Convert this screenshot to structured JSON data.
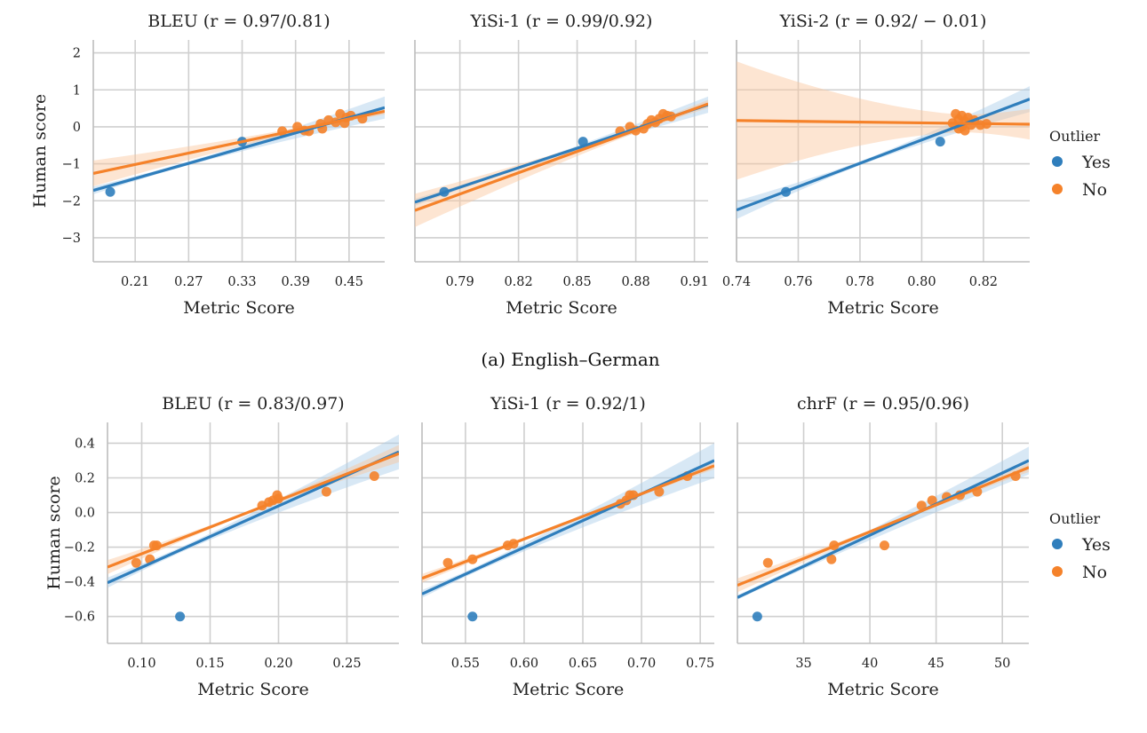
{
  "colors": {
    "yes": "#2f7ebc",
    "no": "#f5822a",
    "yes_fill": "#a9cbe8",
    "no_fill": "#fbc69c"
  },
  "legend": {
    "title": "Outlier",
    "entries": [
      "Yes",
      "No"
    ]
  },
  "captions": {
    "row_a": "(a) English–German"
  },
  "chart_data": [
    {
      "type": "scatter",
      "title": "BLEU (r = 0.97/0.81)",
      "xlabel": "Metric Score",
      "ylabel": "Human score",
      "xlim": [
        0.163,
        0.49
      ],
      "ylim": [
        -3.65,
        2.35
      ],
      "xticks": [
        "0.21",
        "0.27",
        "0.33",
        "0.39",
        "0.45"
      ],
      "yticks": [
        "2",
        "1",
        "0",
        "−1",
        "−2",
        "−3"
      ],
      "series": [
        {
          "name": "Yes",
          "points": [
            [
              0.182,
              -1.76
            ],
            [
              0.33,
              -0.4
            ]
          ],
          "fit": [
            [
              0.163,
              -1.72
            ],
            [
              0.49,
              0.52
            ]
          ],
          "band": 0.3
        },
        {
          "name": "No",
          "points": [
            [
              0.375,
              -0.12
            ],
            [
              0.392,
              0.0
            ],
            [
              0.4,
              -0.1
            ],
            [
              0.405,
              -0.12
            ],
            [
              0.418,
              0.08
            ],
            [
              0.42,
              -0.05
            ],
            [
              0.427,
              0.18
            ],
            [
              0.435,
              0.12
            ],
            [
              0.44,
              0.35
            ],
            [
              0.445,
              0.1
            ],
            [
              0.447,
              0.25
            ],
            [
              0.452,
              0.3
            ],
            [
              0.465,
              0.22
            ]
          ],
          "fit": [
            [
              0.163,
              -1.26
            ],
            [
              0.49,
              0.42
            ]
          ],
          "band": 0.35
        }
      ]
    },
    {
      "type": "scatter",
      "title": "YiSi-1 (r = 0.99/0.92)",
      "xlabel": "Metric Score",
      "ylabel": "",
      "xlim": [
        0.767,
        0.917
      ],
      "ylim": [
        -3.65,
        2.35
      ],
      "xticks": [
        "0.79",
        "0.82",
        "0.85",
        "0.88",
        "0.91"
      ],
      "yticks": [],
      "series": [
        {
          "name": "Yes",
          "points": [
            [
              0.782,
              -1.76
            ],
            [
              0.853,
              -0.4
            ]
          ],
          "fit": [
            [
              0.767,
              -2.04
            ],
            [
              0.917,
              0.6
            ]
          ],
          "band": 0.22
        },
        {
          "name": "No",
          "points": [
            [
              0.872,
              -0.12
            ],
            [
              0.877,
              0.0
            ],
            [
              0.88,
              -0.1
            ],
            [
              0.884,
              -0.05
            ],
            [
              0.886,
              0.08
            ],
            [
              0.888,
              0.18
            ],
            [
              0.89,
              0.12
            ],
            [
              0.892,
              0.22
            ],
            [
              0.894,
              0.35
            ],
            [
              0.896,
              0.3
            ],
            [
              0.898,
              0.28
            ]
          ],
          "fit": [
            [
              0.767,
              -2.26
            ],
            [
              0.917,
              0.62
            ]
          ],
          "band": 0.45
        }
      ]
    },
    {
      "type": "scatter",
      "title": "YiSi-2 (r = 0.92/ − 0.01)",
      "xlabel": "Metric Score",
      "ylabel": "",
      "xlim": [
        0.74,
        0.835
      ],
      "ylim": [
        -3.65,
        2.35
      ],
      "xticks": [
        "0.74",
        "0.76",
        "0.78",
        "0.80",
        "0.82"
      ],
      "yticks": [],
      "series": [
        {
          "name": "Yes",
          "points": [
            [
              0.756,
              -1.76
            ],
            [
              0.806,
              -0.4
            ]
          ],
          "fit": [
            [
              0.74,
              -2.25
            ],
            [
              0.835,
              0.75
            ]
          ],
          "band": 0.35
        },
        {
          "name": "No",
          "points": [
            [
              0.81,
              0.1
            ],
            [
              0.811,
              0.35
            ],
            [
              0.812,
              -0.05
            ],
            [
              0.812,
              0.2
            ],
            [
              0.813,
              0.3
            ],
            [
              0.813,
              0.0
            ],
            [
              0.814,
              0.15
            ],
            [
              0.814,
              -0.1
            ],
            [
              0.815,
              0.25
            ],
            [
              0.816,
              0.05
            ],
            [
              0.817,
              0.18
            ],
            [
              0.819,
              0.05
            ],
            [
              0.821,
              0.08
            ]
          ],
          "fit": [
            [
              0.74,
              0.17
            ],
            [
              0.835,
              0.07
            ]
          ],
          "band": 1.6
        }
      ]
    },
    {
      "type": "scatter",
      "title": "BLEU (r = 0.83/0.97)",
      "xlabel": "Metric Score",
      "ylabel": "Human score",
      "xlim": [
        0.075,
        0.288
      ],
      "ylim": [
        -0.755,
        0.52
      ],
      "xticks": [
        "0.10",
        "0.15",
        "0.20",
        "0.25"
      ],
      "yticks": [
        "0.4",
        "0.2",
        "0.0",
        "−0.2",
        "−0.4",
        "−0.6"
      ],
      "series": [
        {
          "name": "Yes",
          "points": [
            [
              0.128,
              -0.6
            ]
          ],
          "fit": [
            [
              0.075,
              -0.405
            ],
            [
              0.288,
              0.35
            ]
          ],
          "band": 0.1
        },
        {
          "name": "No",
          "points": [
            [
              0.096,
              -0.29
            ],
            [
              0.106,
              -0.27
            ],
            [
              0.109,
              -0.19
            ],
            [
              0.111,
              -0.19
            ],
            [
              0.188,
              0.04
            ],
            [
              0.193,
              0.06
            ],
            [
              0.196,
              0.07
            ],
            [
              0.199,
              0.1
            ],
            [
              0.2,
              0.08
            ],
            [
              0.235,
              0.12
            ],
            [
              0.27,
              0.21
            ]
          ],
          "fit": [
            [
              0.075,
              -0.315
            ],
            [
              0.288,
              0.34
            ]
          ],
          "band": 0.05
        }
      ]
    },
    {
      "type": "scatter",
      "title": "YiSi-1 (r = 0.92/1)",
      "xlabel": "Metric Score",
      "ylabel": "",
      "xlim": [
        0.513,
        0.762
      ],
      "ylim": [
        -0.755,
        0.52
      ],
      "xticks": [
        "0.55",
        "0.60",
        "0.65",
        "0.70",
        "0.75"
      ],
      "yticks": [],
      "series": [
        {
          "name": "Yes",
          "points": [
            [
              0.556,
              -0.6
            ]
          ],
          "fit": [
            [
              0.513,
              -0.47
            ],
            [
              0.762,
              0.3
            ]
          ],
          "band": 0.1
        },
        {
          "name": "No",
          "points": [
            [
              0.535,
              -0.29
            ],
            [
              0.556,
              -0.27
            ],
            [
              0.586,
              -0.19
            ],
            [
              0.591,
              -0.18
            ],
            [
              0.682,
              0.05
            ],
            [
              0.687,
              0.07
            ],
            [
              0.69,
              0.1
            ],
            [
              0.693,
              0.1
            ],
            [
              0.715,
              0.12
            ],
            [
              0.739,
              0.21
            ]
          ],
          "fit": [
            [
              0.513,
              -0.38
            ],
            [
              0.762,
              0.27
            ]
          ],
          "band": 0.025
        }
      ]
    },
    {
      "type": "scatter",
      "title": "chrF (r = 0.95/0.96)",
      "xlabel": "Metric Score",
      "ylabel": "",
      "xlim": [
        30.0,
        52.0
      ],
      "ylim": [
        -0.755,
        0.52
      ],
      "xticks": [
        "35",
        "40",
        "45",
        "50"
      ],
      "yticks": [],
      "series": [
        {
          "name": "Yes",
          "points": [
            [
              31.5,
              -0.6
            ]
          ],
          "fit": [
            [
              30.0,
              -0.49
            ],
            [
              52.0,
              0.3
            ]
          ],
          "band": 0.08
        },
        {
          "name": "No",
          "points": [
            [
              32.3,
              -0.29
            ],
            [
              37.1,
              -0.27
            ],
            [
              37.3,
              -0.19
            ],
            [
              41.1,
              -0.19
            ],
            [
              43.9,
              0.04
            ],
            [
              44.7,
              0.07
            ],
            [
              45.8,
              0.09
            ],
            [
              46.8,
              0.1
            ],
            [
              48.1,
              0.12
            ],
            [
              51.0,
              0.21
            ]
          ],
          "fit": [
            [
              30.0,
              -0.42
            ],
            [
              52.0,
              0.26
            ]
          ],
          "band": 0.04
        }
      ]
    }
  ]
}
